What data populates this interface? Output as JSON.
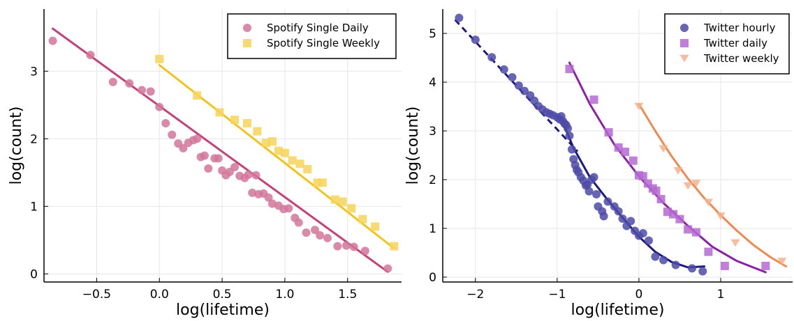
{
  "chart_data": [
    {
      "type": "scatter",
      "xlabel": "log(lifetime)",
      "ylabel": "log(count)",
      "xlim": [
        -0.92,
        1.93
      ],
      "ylim": [
        -0.12,
        3.92
      ],
      "xticks": [
        -0.5,
        0.0,
        0.5,
        1.0,
        1.5
      ],
      "xtick_labels": [
        "−0.5",
        "0.0",
        "0.5",
        "1.0",
        "1.5"
      ],
      "yticks": [
        0,
        1,
        2,
        3
      ],
      "ytick_labels": [
        "0",
        "1",
        "2",
        "3"
      ],
      "grid": true,
      "legend": "top-right",
      "series": [
        {
          "name": "Spotify Single Daily",
          "marker": "circle",
          "color": "#d4759a",
          "fit_color": "#c3427a",
          "points": [
            [
              -0.85,
              3.45
            ],
            [
              -0.55,
              3.24
            ],
            [
              -0.37,
              2.84
            ],
            [
              -0.24,
              2.82
            ],
            [
              -0.14,
              2.72
            ],
            [
              -0.07,
              2.7
            ],
            [
              0.0,
              2.47
            ],
            [
              0.05,
              2.23
            ],
            [
              0.1,
              2.06
            ],
            [
              0.15,
              1.93
            ],
            [
              0.19,
              1.86
            ],
            [
              0.23,
              1.94
            ],
            [
              0.27,
              1.98
            ],
            [
              0.3,
              2.0
            ],
            [
              0.33,
              1.73
            ],
            [
              0.36,
              1.75
            ],
            [
              0.39,
              1.56
            ],
            [
              0.44,
              1.71
            ],
            [
              0.47,
              1.71
            ],
            [
              0.5,
              1.53
            ],
            [
              0.53,
              1.46
            ],
            [
              0.56,
              1.51
            ],
            [
              0.6,
              1.58
            ],
            [
              0.64,
              1.45
            ],
            [
              0.68,
              1.42
            ],
            [
              0.71,
              1.47
            ],
            [
              0.74,
              1.2
            ],
            [
              0.77,
              1.46
            ],
            [
              0.79,
              1.18
            ],
            [
              0.83,
              1.19
            ],
            [
              0.87,
              1.13
            ],
            [
              0.9,
              1.04
            ],
            [
              0.95,
              1.01
            ],
            [
              0.99,
              0.96
            ],
            [
              1.03,
              0.97
            ],
            [
              1.08,
              0.83
            ],
            [
              1.11,
              0.76
            ],
            [
              1.17,
              0.61
            ],
            [
              1.24,
              0.65
            ],
            [
              1.28,
              0.57
            ],
            [
              1.34,
              0.53
            ],
            [
              1.42,
              0.41
            ],
            [
              1.49,
              0.42
            ],
            [
              1.55,
              0.4
            ],
            [
              1.64,
              0.34
            ],
            [
              1.82,
              0.08
            ]
          ],
          "fit": [
            [
              -0.85,
              3.63
            ],
            [
              1.82,
              0.03
            ]
          ]
        },
        {
          "name": "Spotify Single Weekly",
          "marker": "square",
          "color": "#f7d35a",
          "fit_color": "#f3c319",
          "points": [
            [
              0.0,
              3.18
            ],
            [
              0.3,
              2.64
            ],
            [
              0.48,
              2.39
            ],
            [
              0.6,
              2.28
            ],
            [
              0.7,
              2.23
            ],
            [
              0.78,
              2.11
            ],
            [
              0.85,
              1.94
            ],
            [
              0.9,
              1.96
            ],
            [
              0.95,
              1.82
            ],
            [
              1.0,
              1.79
            ],
            [
              1.06,
              1.68
            ],
            [
              1.12,
              1.63
            ],
            [
              1.18,
              1.55
            ],
            [
              1.26,
              1.35
            ],
            [
              1.3,
              1.35
            ],
            [
              1.4,
              1.1
            ],
            [
              1.46,
              1.07
            ],
            [
              1.53,
              0.97
            ],
            [
              1.62,
              0.81
            ],
            [
              1.72,
              0.7
            ],
            [
              1.87,
              0.41
            ]
          ],
          "fit": [
            [
              0.0,
              3.09
            ],
            [
              1.87,
              0.38
            ]
          ]
        }
      ]
    },
    {
      "type": "scatter",
      "xlabel": "log(lifetime)",
      "ylabel": "log(count)",
      "xlim": [
        -2.4,
        1.88
      ],
      "ylim": [
        -0.1,
        5.5
      ],
      "xticks": [
        -2,
        -1,
        0,
        1
      ],
      "xtick_labels": [
        "−2",
        "−1",
        "0",
        "1"
      ],
      "yticks": [
        0,
        1,
        2,
        3,
        4,
        5
      ],
      "ytick_labels": [
        "0",
        "1",
        "2",
        "3",
        "4",
        "5"
      ],
      "grid": true,
      "legend": "top-right",
      "series": [
        {
          "name": "Twitter hourly",
          "marker": "circle",
          "color": "#4f4aa8",
          "fit_color": "#1a1a80",
          "points": [
            [
              -2.2,
              5.32
            ],
            [
              -2.0,
              4.87
            ],
            [
              -1.8,
              4.51
            ],
            [
              -1.65,
              4.26
            ],
            [
              -1.55,
              4.1
            ],
            [
              -1.47,
              3.93
            ],
            [
              -1.4,
              3.82
            ],
            [
              -1.33,
              3.73
            ],
            [
              -1.28,
              3.62
            ],
            [
              -1.23,
              3.51
            ],
            [
              -1.18,
              3.44
            ],
            [
              -1.13,
              3.38
            ],
            [
              -1.09,
              3.35
            ],
            [
              -1.05,
              3.32
            ],
            [
              -1.0,
              3.28
            ],
            [
              -0.97,
              3.24
            ],
            [
              -0.95,
              3.3
            ],
            [
              -0.93,
              3.2
            ],
            [
              -0.91,
              3.15
            ],
            [
              -0.89,
              3.12
            ],
            [
              -0.87,
              3.05
            ],
            [
              -0.85,
              2.9
            ],
            [
              -0.82,
              2.62
            ],
            [
              -0.8,
              2.42
            ],
            [
              -0.78,
              2.3
            ],
            [
              -0.76,
              2.2
            ],
            [
              -0.74,
              2.15
            ],
            [
              -0.71,
              2.05
            ],
            [
              -0.68,
              1.98
            ],
            [
              -0.65,
              1.88
            ],
            [
              -0.63,
              1.9
            ],
            [
              -0.61,
              1.76
            ],
            [
              -0.58,
              2.0
            ],
            [
              -0.55,
              2.05
            ],
            [
              -0.52,
              1.7
            ],
            [
              -0.5,
              1.45
            ],
            [
              -0.45,
              1.35
            ],
            [
              -0.43,
              1.25
            ],
            [
              -0.38,
              1.55
            ],
            [
              -0.3,
              1.45
            ],
            [
              -0.25,
              1.35
            ],
            [
              -0.2,
              1.2
            ],
            [
              -0.15,
              1.05
            ],
            [
              -0.1,
              1.15
            ],
            [
              -0.05,
              0.95
            ],
            [
              0.0,
              0.85
            ],
            [
              0.05,
              0.9
            ],
            [
              0.12,
              0.75
            ],
            [
              0.2,
              0.42
            ],
            [
              0.3,
              0.35
            ],
            [
              0.45,
              0.25
            ],
            [
              0.65,
              0.18
            ],
            [
              0.78,
              0.12
            ]
          ],
          "fit": [
            [
              -0.9,
              3.05
            ],
            [
              -0.8,
              2.65
            ],
            [
              -0.6,
              2.05
            ],
            [
              -0.4,
              1.62
            ],
            [
              -0.2,
              1.22
            ],
            [
              0.0,
              0.83
            ],
            [
              0.2,
              0.52
            ],
            [
              0.4,
              0.31
            ],
            [
              0.6,
              0.2
            ],
            [
              0.8,
              0.22
            ]
          ],
          "fit_dashed": [
            [
              -2.25,
              5.28
            ],
            [
              -0.75,
              2.58
            ]
          ]
        },
        {
          "name": "Twitter daily",
          "marker": "square",
          "color": "#b569d1",
          "fit_color": "#8b1fa8",
          "points": [
            [
              -0.85,
              4.27
            ],
            [
              -0.55,
              3.64
            ],
            [
              -0.37,
              2.97
            ],
            [
              -0.25,
              2.66
            ],
            [
              -0.17,
              2.57
            ],
            [
              -0.07,
              2.39
            ],
            [
              0.0,
              2.09
            ],
            [
              0.05,
              2.07
            ],
            [
              0.11,
              1.92
            ],
            [
              0.17,
              1.82
            ],
            [
              0.21,
              1.77
            ],
            [
              0.27,
              1.6
            ],
            [
              0.35,
              1.34
            ],
            [
              0.42,
              1.29
            ],
            [
              0.5,
              1.19
            ],
            [
              0.6,
              0.98
            ],
            [
              0.7,
              0.92
            ],
            [
              0.85,
              0.52
            ],
            [
              1.05,
              0.23
            ],
            [
              1.55,
              0.23
            ]
          ],
          "fit": [
            [
              -0.85,
              4.4
            ],
            [
              -0.6,
              3.55
            ],
            [
              -0.3,
              2.72
            ],
            [
              0.0,
              2.07
            ],
            [
              0.3,
              1.52
            ],
            [
              0.6,
              1.05
            ],
            [
              0.9,
              0.62
            ],
            [
              1.2,
              0.33
            ],
            [
              1.55,
              0.1
            ]
          ]
        },
        {
          "name": "Twitter weekly",
          "marker": "triangle-down",
          "color": "#f4b08e",
          "fit_color": "#ee8a50",
          "points": [
            [
              0.0,
              3.5
            ],
            [
              0.3,
              2.63
            ],
            [
              0.48,
              2.18
            ],
            [
              0.6,
              1.87
            ],
            [
              0.7,
              1.92
            ],
            [
              0.85,
              1.53
            ],
            [
              1.0,
              1.25
            ],
            [
              1.18,
              0.7
            ],
            [
              1.75,
              0.32
            ]
          ],
          "fit": [
            [
              0.0,
              3.55
            ],
            [
              0.2,
              3.0
            ],
            [
              0.4,
              2.48
            ],
            [
              0.6,
              2.02
            ],
            [
              0.8,
              1.62
            ],
            [
              1.0,
              1.27
            ],
            [
              1.2,
              0.95
            ],
            [
              1.4,
              0.66
            ],
            [
              1.6,
              0.42
            ],
            [
              1.8,
              0.22
            ]
          ]
        }
      ]
    }
  ]
}
